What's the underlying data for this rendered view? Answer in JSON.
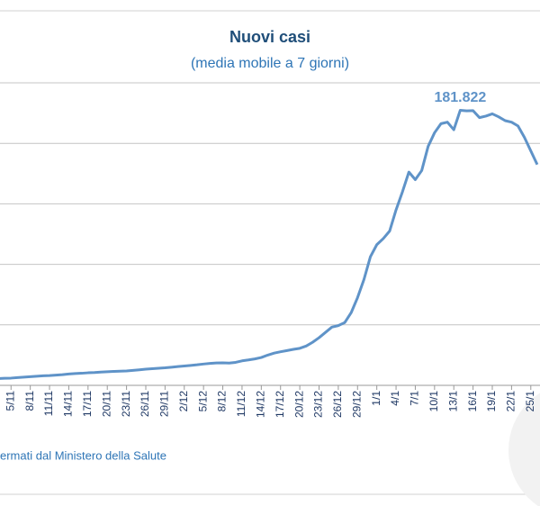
{
  "chart_data": {
    "type": "line",
    "title": "Nuovi casi",
    "subtitle": "(media mobile a 7 giorni)",
    "source": "ermati dal Ministero della Salute",
    "peak_label": "181.822",
    "categories": [
      null,
      null,
      "5/11",
      null,
      null,
      "8/11",
      null,
      null,
      "11/11",
      null,
      null,
      "14/11",
      null,
      null,
      "17/11",
      null,
      null,
      "20/11",
      null,
      null,
      "23/11",
      null,
      null,
      "26/11",
      null,
      null,
      "29/11",
      null,
      null,
      "2/12",
      null,
      null,
      "5/12",
      null,
      null,
      "8/12",
      null,
      null,
      "11/12",
      null,
      null,
      "14/12",
      null,
      null,
      "17/12",
      null,
      null,
      "20/12",
      null,
      null,
      "23/12",
      null,
      null,
      "26/12",
      null,
      null,
      "29/12",
      null,
      null,
      "1/1",
      null,
      null,
      "4/1",
      null,
      null,
      "7/1",
      null,
      null,
      "10/1",
      null,
      null,
      "13/1",
      null,
      null,
      "16/1",
      null,
      null,
      "19/1",
      null,
      null,
      "22/1",
      null,
      null,
      "25/1",
      null
    ],
    "series": [
      {
        "name": "Nuovi casi",
        "color": "#5f93c8",
        "values": [
          4500,
          4700,
          4800,
          5100,
          5400,
          5700,
          6000,
          6300,
          6500,
          6800,
          7100,
          7500,
          7800,
          8000,
          8300,
          8500,
          8800,
          9000,
          9200,
          9400,
          9500,
          9900,
          10300,
          10700,
          11000,
          11300,
          11600,
          12000,
          12400,
          12800,
          13200,
          13600,
          14100,
          14500,
          14800,
          14900,
          14700,
          15200,
          16200,
          16800,
          17500,
          18400,
          20000,
          21300,
          22200,
          23000,
          23800,
          24500,
          26000,
          28500,
          31500,
          35000,
          38500,
          39500,
          41500,
          48000,
          58000,
          70000,
          85000,
          93000,
          97000,
          102000,
          116000,
          128000,
          141000,
          136000,
          142000,
          158000,
          167000,
          173000,
          174000,
          169000,
          181822,
          181500,
          181600,
          177000,
          178000,
          179500,
          177500,
          175000,
          174000,
          171500,
          164000,
          155000,
          146000
        ]
      }
    ],
    "ylim": [
      0,
      200000
    ],
    "yticks": [
      0,
      40000,
      80000,
      120000,
      160000,
      200000
    ],
    "grid": true
  }
}
